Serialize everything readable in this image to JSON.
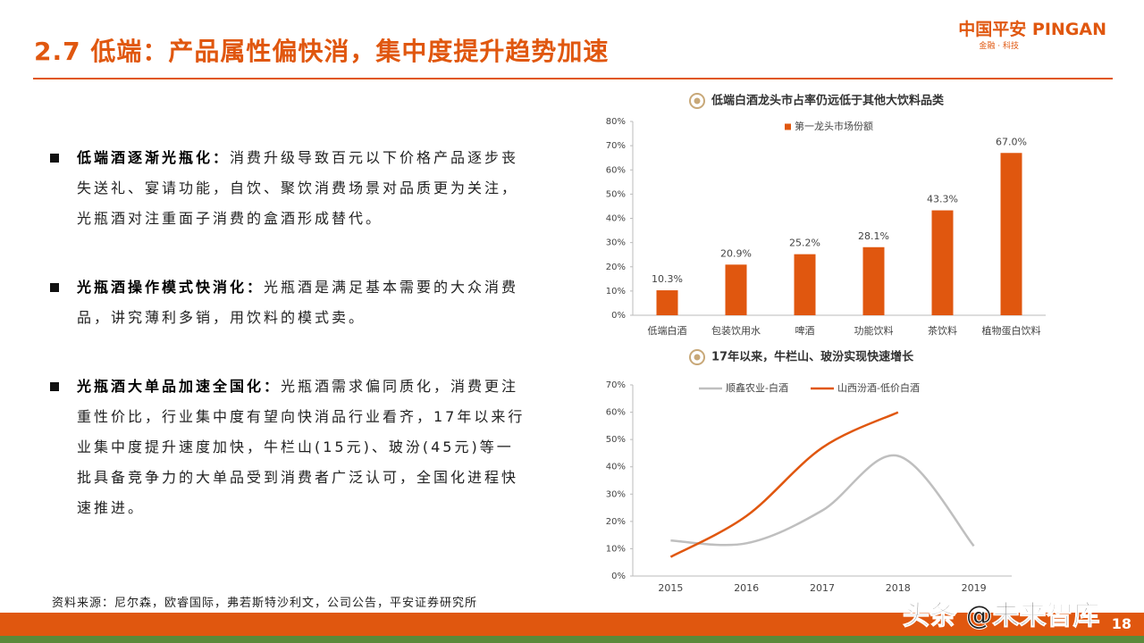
{
  "header": {
    "title": "2.7 低端：产品属性偏快消，集中度提升趋势加速",
    "logo": "中国平安 PINGAN",
    "logo_sub": "金融 · 科技"
  },
  "bullets": [
    {
      "title": "低端酒逐渐光瓶化：",
      "text": "消费升级导致百元以下价格产品逐步丧失送礼、宴请功能，自饮、聚饮消费场景对品质更为关注，光瓶酒对注重面子消费的盒酒形成替代。"
    },
    {
      "title": "光瓶酒操作模式快消化：",
      "text": "光瓶酒是满足基本需要的大众消费品，讲究薄利多销，用饮料的模式卖。"
    },
    {
      "title": "光瓶酒大单品加速全国化：",
      "text": "光瓶酒需求偏同质化，消费更注重性价比，行业集中度有望向快消品行业看齐，17年以来行业集中度提升速度加快，牛栏山(15元)、玻汾(45元)等一批具备竞争力的大单品受到消费者广泛认可，全国化进程快速推进。"
    }
  ],
  "source": "资料来源：尼尔森，欧睿国际，弗若斯特沙利文，公司公告，平安证券研究所",
  "watermark": "头条 @未来智库",
  "page_number": "18",
  "chart_data": [
    {
      "type": "bar",
      "title": "低端白酒龙头市占率仍远低于其他大饮料品类",
      "categories": [
        "低端白酒",
        "包装饮用水",
        "啤酒",
        "功能饮料",
        "茶饮料",
        "植物蛋白饮料"
      ],
      "series": [
        {
          "name": "第一龙头市场份额",
          "color": "#e0570f",
          "values": [
            10.3,
            20.9,
            25.2,
            28.1,
            43.3,
            67.0
          ],
          "value_labels": [
            "10.3%",
            "20.9%",
            "25.2%",
            "28.1%",
            "43.3%",
            "67.0%"
          ]
        }
      ],
      "ylim": [
        0,
        80
      ],
      "yticks": [
        {
          "value": 0,
          "label": "0%"
        },
        {
          "value": 10,
          "label": "10%"
        },
        {
          "value": 20,
          "label": "20%"
        },
        {
          "value": 30,
          "label": "30%"
        },
        {
          "value": 40,
          "label": "40%"
        },
        {
          "value": 50,
          "label": "50%"
        },
        {
          "value": 60,
          "label": "60%"
        },
        {
          "value": 70,
          "label": "70%"
        },
        {
          "value": 80,
          "label": "80%"
        }
      ]
    },
    {
      "type": "line",
      "title": "17年以来，牛栏山、玻汾实现快速增长",
      "x": [
        2015,
        2016,
        2017,
        2018,
        2019
      ],
      "series": [
        {
          "name": "顺鑫农业-白酒",
          "color": "#bfbfbf",
          "values": [
            13,
            12,
            24,
            44,
            11
          ]
        },
        {
          "name": "山西汾酒-低价白酒",
          "color": "#e0570f",
          "values": [
            7,
            22,
            47,
            60,
            null
          ]
        }
      ],
      "xlim": [
        2014.5,
        2019.5
      ],
      "xticks": [
        2015,
        2016,
        2017,
        2018,
        2019
      ],
      "ylim": [
        0,
        70
      ],
      "yticks": [
        {
          "value": 0,
          "label": "0%"
        },
        {
          "value": 10,
          "label": "10%"
        },
        {
          "value": 20,
          "label": "20%"
        },
        {
          "value": 30,
          "label": "30%"
        },
        {
          "value": 40,
          "label": "40%"
        },
        {
          "value": 50,
          "label": "50%"
        },
        {
          "value": 60,
          "label": "60%"
        },
        {
          "value": 70,
          "label": "70%"
        }
      ]
    }
  ]
}
